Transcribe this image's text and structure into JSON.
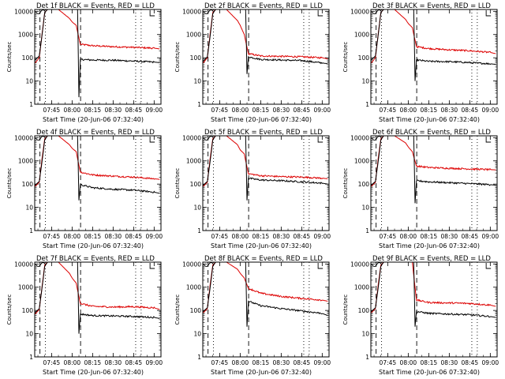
{
  "colors": {
    "events": "#000000",
    "lld": "#dd0000",
    "axes": "#000000",
    "background": "#ffffff"
  },
  "common": {
    "ylabel": "Counts/sec",
    "xlabel": "Start Time (20-Jun-06 07:32:40)",
    "x_ticks": [
      "07:45",
      "08:00",
      "08:15",
      "08:30",
      "08:45",
      "09:00"
    ],
    "y_ticks": [
      "1",
      "10",
      "100",
      "1000",
      "10000"
    ],
    "y_scale": "log",
    "ylim": [
      1,
      12000
    ]
  },
  "chart_data": [
    {
      "type": "line",
      "title": "Det 1f BLACK = Events, RED = LLD",
      "xlabel": "Start Time (20-Jun-06 07:32:40)",
      "ylabel": "Counts/sec",
      "x_ticks": [
        "07:45",
        "08:00",
        "08:15",
        "08:30",
        "08:45",
        "09:00"
      ],
      "y_ticks": [
        1,
        10,
        100,
        1000,
        10000
      ],
      "grid": false,
      "series": [
        {
          "name": "Events",
          "color": "#000000",
          "x": [
            "07:33",
            "07:36",
            "07:38",
            "07:40",
            "07:42",
            "07:44",
            "07:50",
            "08:00",
            "08:04",
            "08:05",
            "08:06",
            "08:15",
            "08:30",
            "08:45",
            "09:00",
            "09:04"
          ],
          "values": [
            80,
            120,
            900,
            9000,
            12000,
            12000,
            12000,
            12000,
            12000,
            2,
            85,
            80,
            78,
            72,
            65,
            62
          ]
        },
        {
          "name": "LLD",
          "color": "#dd0000",
          "x": [
            "07:33",
            "07:36",
            "07:38",
            "07:40",
            "07:42",
            "07:44",
            "07:50",
            "07:58",
            "08:00",
            "08:03",
            "08:06",
            "08:15",
            "08:30",
            "08:45",
            "09:00",
            "09:04"
          ],
          "values": [
            60,
            100,
            1000,
            9000,
            12000,
            12000,
            12000,
            5000,
            3500,
            2500,
            380,
            330,
            300,
            280,
            260,
            240
          ]
        }
      ]
    },
    {
      "type": "line",
      "title": "Det 2f BLACK = Events, RED = LLD",
      "xlabel": "Start Time (20-Jun-06 07:32:40)",
      "ylabel": "Counts/sec",
      "x_ticks": [
        "07:45",
        "08:00",
        "08:15",
        "08:30",
        "08:45",
        "09:00"
      ],
      "y_ticks": [
        1,
        10,
        100,
        1000,
        10000
      ],
      "grid": false,
      "series": [
        {
          "name": "Events",
          "color": "#000000",
          "x": [
            "07:33",
            "07:36",
            "07:38",
            "07:40",
            "07:42",
            "07:44",
            "07:50",
            "08:00",
            "08:04",
            "08:05",
            "08:06",
            "08:15",
            "08:30",
            "08:45",
            "09:00",
            "09:04"
          ],
          "values": [
            70,
            110,
            800,
            8000,
            12000,
            12000,
            12000,
            12000,
            12000,
            20,
            110,
            85,
            80,
            75,
            60,
            55
          ]
        },
        {
          "name": "LLD",
          "color": "#dd0000",
          "x": [
            "07:33",
            "07:36",
            "07:38",
            "07:40",
            "07:42",
            "07:44",
            "07:50",
            "07:58",
            "08:00",
            "08:03",
            "08:06",
            "08:15",
            "08:30",
            "08:45",
            "09:00",
            "09:04"
          ],
          "values": [
            60,
            100,
            1000,
            9000,
            12000,
            12000,
            12000,
            4000,
            2500,
            1000,
            150,
            120,
            115,
            110,
            100,
            90
          ]
        }
      ]
    },
    {
      "type": "line",
      "title": "Det 3f BLACK = Events, RED = LLD",
      "xlabel": "Start Time (20-Jun-06 07:32:40)",
      "ylabel": "Counts/sec",
      "x_ticks": [
        "07:45",
        "08:00",
        "08:15",
        "08:30",
        "08:45",
        "09:00"
      ],
      "y_ticks": [
        1,
        10,
        100,
        1000,
        10000
      ],
      "grid": false,
      "series": [
        {
          "name": "Events",
          "color": "#000000",
          "x": [
            "07:33",
            "07:36",
            "07:38",
            "07:40",
            "07:42",
            "07:44",
            "07:50",
            "08:00",
            "08:04",
            "08:05",
            "08:06",
            "08:15",
            "08:30",
            "08:45",
            "09:00",
            "09:04"
          ],
          "values": [
            80,
            120,
            900,
            9000,
            12000,
            12000,
            12000,
            12000,
            12000,
            10,
            80,
            70,
            68,
            62,
            55,
            52
          ]
        },
        {
          "name": "LLD",
          "color": "#dd0000",
          "x": [
            "07:33",
            "07:36",
            "07:38",
            "07:40",
            "07:42",
            "07:44",
            "07:50",
            "07:58",
            "08:00",
            "08:03",
            "08:06",
            "08:15",
            "08:30",
            "08:45",
            "09:00",
            "09:04"
          ],
          "values": [
            60,
            100,
            1000,
            9000,
            12000,
            12000,
            12000,
            4500,
            3000,
            2000,
            300,
            250,
            220,
            200,
            170,
            150
          ]
        }
      ]
    },
    {
      "type": "line",
      "title": "Det 4f BLACK = Events, RED = LLD",
      "xlabel": "Start Time (20-Jun-06 07:32:40)",
      "ylabel": "Counts/sec",
      "x_ticks": [
        "07:45",
        "08:00",
        "08:15",
        "08:30",
        "08:45",
        "09:00"
      ],
      "y_ticks": [
        1,
        10,
        100,
        1000,
        10000
      ],
      "grid": false,
      "series": [
        {
          "name": "Events",
          "color": "#000000",
          "x": [
            "07:33",
            "07:36",
            "07:38",
            "07:40",
            "07:42",
            "07:44",
            "07:50",
            "08:00",
            "08:04",
            "08:05",
            "08:06",
            "08:15",
            "08:30",
            "08:45",
            "09:00",
            "09:04"
          ],
          "values": [
            90,
            130,
            900,
            8000,
            12000,
            12000,
            12000,
            12000,
            12000,
            20,
            95,
            70,
            60,
            55,
            45,
            40
          ]
        },
        {
          "name": "LLD",
          "color": "#dd0000",
          "x": [
            "07:33",
            "07:36",
            "07:38",
            "07:40",
            "07:42",
            "07:44",
            "07:50",
            "07:58",
            "08:00",
            "08:03",
            "08:06",
            "08:15",
            "08:30",
            "08:45",
            "09:00",
            "09:04"
          ],
          "values": [
            80,
            120,
            1200,
            9000,
            12000,
            12000,
            12000,
            5000,
            3500,
            2500,
            330,
            250,
            220,
            200,
            170,
            160
          ]
        }
      ]
    },
    {
      "type": "line",
      "title": "Det 5f BLACK = Events, RED = LLD",
      "xlabel": "Start Time (20-Jun-06 07:32:40)",
      "ylabel": "Counts/sec",
      "x_ticks": [
        "07:45",
        "08:00",
        "08:15",
        "08:30",
        "08:45",
        "09:00"
      ],
      "y_ticks": [
        1,
        10,
        100,
        1000,
        10000
      ],
      "grid": false,
      "series": [
        {
          "name": "Events",
          "color": "#000000",
          "x": [
            "07:33",
            "07:36",
            "07:38",
            "07:40",
            "07:42",
            "07:44",
            "07:50",
            "08:00",
            "08:04",
            "08:05",
            "08:06",
            "08:15",
            "08:30",
            "08:45",
            "09:00",
            "09:04"
          ],
          "values": [
            90,
            130,
            900,
            8000,
            12000,
            12000,
            12000,
            12000,
            12000,
            20,
            180,
            150,
            140,
            125,
            110,
            100
          ]
        },
        {
          "name": "LLD",
          "color": "#dd0000",
          "x": [
            "07:33",
            "07:36",
            "07:38",
            "07:40",
            "07:42",
            "07:44",
            "07:50",
            "07:58",
            "08:00",
            "08:03",
            "08:06",
            "08:15",
            "08:30",
            "08:45",
            "09:00",
            "09:04"
          ],
          "values": [
            80,
            120,
            1200,
            9000,
            12000,
            12000,
            12000,
            5000,
            3000,
            2000,
            280,
            230,
            210,
            200,
            180,
            170
          ]
        }
      ]
    },
    {
      "type": "line",
      "title": "Det 6f BLACK = Events, RED = LLD",
      "xlabel": "Start Time (20-Jun-06 07:32:40)",
      "ylabel": "Counts/sec",
      "x_ticks": [
        "07:45",
        "08:00",
        "08:15",
        "08:30",
        "08:45",
        "09:00"
      ],
      "y_ticks": [
        1,
        10,
        100,
        1000,
        10000
      ],
      "grid": false,
      "series": [
        {
          "name": "Events",
          "color": "#000000",
          "x": [
            "07:33",
            "07:36",
            "07:38",
            "07:40",
            "07:42",
            "07:44",
            "07:50",
            "08:00",
            "08:04",
            "08:05",
            "08:06",
            "08:15",
            "08:30",
            "08:45",
            "09:00",
            "09:04"
          ],
          "values": [
            90,
            130,
            900,
            8000,
            12000,
            12000,
            12000,
            12000,
            12000,
            15,
            140,
            125,
            115,
            105,
            95,
            90
          ]
        },
        {
          "name": "LLD",
          "color": "#dd0000",
          "x": [
            "07:33",
            "07:36",
            "07:38",
            "07:40",
            "07:42",
            "07:44",
            "07:50",
            "07:58",
            "08:00",
            "08:03",
            "08:06",
            "08:15",
            "08:30",
            "08:45",
            "09:00",
            "09:04"
          ],
          "values": [
            80,
            120,
            1200,
            9000,
            12000,
            12000,
            12000,
            6000,
            4000,
            2500,
            600,
            520,
            480,
            450,
            420,
            410
          ]
        }
      ]
    },
    {
      "type": "line",
      "title": "Det 7f BLACK = Events, RED = LLD",
      "xlabel": "Start Time (20-Jun-06 07:32:40)",
      "ylabel": "Counts/sec",
      "x_ticks": [
        "07:45",
        "08:00",
        "08:15",
        "08:30",
        "08:45",
        "09:00"
      ],
      "y_ticks": [
        1,
        10,
        100,
        1000,
        10000
      ],
      "grid": false,
      "series": [
        {
          "name": "Events",
          "color": "#000000",
          "x": [
            "07:33",
            "07:36",
            "07:38",
            "07:40",
            "07:42",
            "07:44",
            "07:50",
            "08:00",
            "08:04",
            "08:05",
            "08:06",
            "08:15",
            "08:30",
            "08:45",
            "09:00",
            "09:04"
          ],
          "values": [
            80,
            120,
            900,
            8000,
            12000,
            12000,
            12000,
            12000,
            12000,
            10,
            70,
            60,
            58,
            55,
            50,
            45
          ]
        },
        {
          "name": "LLD",
          "color": "#dd0000",
          "x": [
            "07:33",
            "07:36",
            "07:38",
            "07:40",
            "07:42",
            "07:44",
            "07:50",
            "07:58",
            "08:00",
            "08:03",
            "08:06",
            "08:15",
            "08:30",
            "08:45",
            "09:00",
            "09:04"
          ],
          "values": [
            70,
            110,
            1000,
            9000,
            12000,
            12000,
            12000,
            4000,
            2500,
            1500,
            200,
            150,
            140,
            145,
            130,
            110
          ]
        }
      ]
    },
    {
      "type": "line",
      "title": "Det 8f BLACK = Events, RED = LLD",
      "xlabel": "Start Time (20-Jun-06 07:32:40)",
      "ylabel": "Counts/sec",
      "x_ticks": [
        "07:45",
        "08:00",
        "08:15",
        "08:30",
        "08:45",
        "09:00"
      ],
      "y_ticks": [
        1,
        10,
        100,
        1000,
        10000
      ],
      "grid": false,
      "series": [
        {
          "name": "Events",
          "color": "#000000",
          "x": [
            "07:33",
            "07:36",
            "07:38",
            "07:40",
            "07:42",
            "07:44",
            "07:50",
            "08:00",
            "08:04",
            "08:05",
            "08:06",
            "08:15",
            "08:30",
            "08:45",
            "09:00",
            "09:04"
          ],
          "values": [
            90,
            130,
            900,
            8000,
            12000,
            12000,
            12000,
            12000,
            12000,
            20,
            250,
            160,
            120,
            95,
            75,
            60
          ]
        },
        {
          "name": "LLD",
          "color": "#dd0000",
          "x": [
            "07:33",
            "07:36",
            "07:38",
            "07:40",
            "07:42",
            "07:44",
            "07:50",
            "07:58",
            "08:00",
            "08:03",
            "08:06",
            "08:15",
            "08:30",
            "08:45",
            "09:00",
            "09:04"
          ],
          "values": [
            80,
            120,
            1200,
            9000,
            12000,
            12000,
            12000,
            6000,
            4000,
            2500,
            900,
            550,
            400,
            330,
            280,
            250
          ]
        }
      ]
    },
    {
      "type": "line",
      "title": "Det 9f BLACK = Events, RED = LLD",
      "xlabel": "Start Time (20-Jun-06 07:32:40)",
      "ylabel": "Counts/sec",
      "x_ticks": [
        "07:45",
        "08:00",
        "08:15",
        "08:30",
        "08:45",
        "09:00"
      ],
      "y_ticks": [
        1,
        10,
        100,
        1000,
        10000
      ],
      "grid": false,
      "series": [
        {
          "name": "Events",
          "color": "#000000",
          "x": [
            "07:33",
            "07:36",
            "07:38",
            "07:40",
            "07:42",
            "07:44",
            "07:50",
            "08:00",
            "08:04",
            "08:05",
            "08:06",
            "08:15",
            "08:30",
            "08:45",
            "09:00",
            "09:04"
          ],
          "values": [
            90,
            130,
            900,
            8000,
            12000,
            12000,
            12000,
            12000,
            12000,
            20,
            90,
            75,
            70,
            65,
            55,
            50
          ]
        },
        {
          "name": "LLD",
          "color": "#dd0000",
          "x": [
            "07:33",
            "07:36",
            "07:38",
            "07:40",
            "07:42",
            "07:44",
            "07:50",
            "07:58",
            "08:00",
            "08:03",
            "08:06",
            "08:15",
            "08:30",
            "08:45",
            "09:00",
            "09:04"
          ],
          "values": [
            80,
            120,
            1200,
            9000,
            12000,
            12000,
            12000,
            12000,
            12000,
            12000,
            280,
            220,
            210,
            200,
            170,
            150
          ]
        }
      ]
    }
  ]
}
